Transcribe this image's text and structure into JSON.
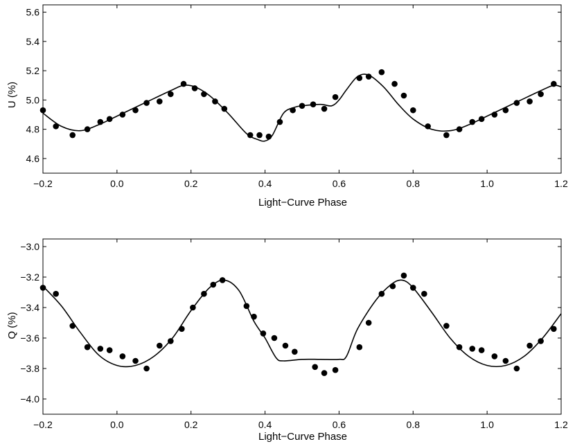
{
  "chart_data": [
    {
      "type": "scatter",
      "panel": "top",
      "xlabel": "Light−Curve Phase",
      "ylabel": "U (%)",
      "xlim": [
        -0.2,
        1.2
      ],
      "ylim": [
        4.5,
        5.65
      ],
      "grid": false,
      "xticks": [
        -0.2,
        0.0,
        0.2,
        0.4,
        0.6,
        0.8,
        1.0,
        1.2
      ],
      "xtick_labels": [
        "−0.2",
        "0.0",
        "0.2",
        "0.4",
        "0.6",
        "0.8",
        "1.0",
        "1.2"
      ],
      "yticks": [
        4.6,
        4.8,
        5.0,
        5.2,
        5.4,
        5.6
      ],
      "ytick_labels": [
        "4.6",
        "4.8",
        "5.0",
        "5.2",
        "5.4",
        "5.6"
      ],
      "series": [
        {
          "kind": "points",
          "x": [
            -0.2,
            -0.165,
            -0.12,
            -0.08,
            -0.045,
            -0.02,
            0.015,
            0.05,
            0.08,
            0.115,
            0.145,
            0.18,
            0.21,
            0.235,
            0.265,
            0.29,
            0.36,
            0.385,
            0.41,
            0.44,
            0.475,
            0.5,
            0.53,
            0.56,
            0.59,
            0.655,
            0.68,
            0.715,
            0.75,
            0.775,
            0.8,
            0.84,
            0.89,
            0.925,
            0.96,
            0.985,
            1.02,
            1.05,
            1.08,
            1.115,
            1.145,
            1.18
          ],
          "y": [
            4.93,
            4.82,
            4.76,
            4.8,
            4.85,
            4.87,
            4.9,
            4.93,
            4.98,
            4.99,
            5.04,
            5.11,
            5.08,
            5.04,
            4.99,
            4.94,
            4.76,
            4.76,
            4.75,
            4.85,
            4.93,
            4.96,
            4.97,
            4.94,
            5.02,
            5.15,
            5.16,
            5.19,
            5.11,
            5.03,
            4.93,
            4.82,
            4.76,
            4.8,
            4.85,
            4.87,
            4.9,
            4.93,
            4.98,
            4.99,
            5.04,
            5.11
          ]
        },
        {
          "kind": "line",
          "x": [
            -0.2,
            -0.15,
            -0.1,
            -0.05,
            0.0,
            0.05,
            0.1,
            0.15,
            0.18,
            0.21,
            0.25,
            0.3,
            0.35,
            0.38,
            0.4,
            0.42,
            0.45,
            0.48,
            0.5,
            0.55,
            0.58,
            0.6,
            0.62,
            0.65,
            0.68,
            0.72,
            0.76,
            0.8,
            0.85,
            0.9,
            0.95,
            1.0,
            1.05,
            1.1,
            1.15,
            1.18,
            1.2
          ],
          "y": [
            4.91,
            4.82,
            4.79,
            4.83,
            4.89,
            4.95,
            5.01,
            5.07,
            5.1,
            5.09,
            5.03,
            4.91,
            4.77,
            4.73,
            4.72,
            4.76,
            4.91,
            4.95,
            4.96,
            4.97,
            4.96,
            5.0,
            5.07,
            5.16,
            5.17,
            5.09,
            4.97,
            4.87,
            4.8,
            4.79,
            4.83,
            4.89,
            4.95,
            5.01,
            5.07,
            5.1,
            5.09
          ]
        }
      ]
    },
    {
      "type": "scatter",
      "panel": "bottom",
      "xlabel": "Light−Curve Phase",
      "ylabel": "Q (%)",
      "xlim": [
        -0.2,
        1.2
      ],
      "ylim": [
        -4.1,
        -2.95
      ],
      "grid": false,
      "xticks": [
        -0.2,
        0.0,
        0.2,
        0.4,
        0.6,
        0.8,
        1.0,
        1.2
      ],
      "xtick_labels": [
        "−0.2",
        "0.0",
        "0.2",
        "0.4",
        "0.6",
        "0.8",
        "1.0",
        "1.2"
      ],
      "yticks": [
        -4.0,
        -3.8,
        -3.6,
        -3.4,
        -3.2,
        -3.0
      ],
      "ytick_labels": [
        "−4.0",
        "−3.8",
        "−3.6",
        "−3.4",
        "−3.2",
        "−3.0"
      ],
      "series": [
        {
          "kind": "points",
          "x": [
            -0.2,
            -0.165,
            -0.12,
            -0.08,
            -0.045,
            -0.02,
            0.015,
            0.05,
            0.08,
            0.115,
            0.145,
            0.175,
            0.205,
            0.235,
            0.26,
            0.285,
            0.35,
            0.37,
            0.395,
            0.425,
            0.455,
            0.48,
            0.535,
            0.56,
            0.59,
            0.655,
            0.68,
            0.715,
            0.745,
            0.775,
            0.8,
            0.83,
            0.89,
            0.925,
            0.96,
            0.985,
            1.02,
            1.05,
            1.08,
            1.115,
            1.145,
            1.18
          ],
          "y": [
            -3.27,
            -3.31,
            -3.52,
            -3.66,
            -3.67,
            -3.68,
            -3.72,
            -3.75,
            -3.8,
            -3.65,
            -3.62,
            -3.54,
            -3.4,
            -3.31,
            -3.25,
            -3.22,
            -3.39,
            -3.46,
            -3.57,
            -3.6,
            -3.65,
            -3.69,
            -3.79,
            -3.83,
            -3.81,
            -3.66,
            -3.5,
            -3.31,
            -3.26,
            -3.19,
            -3.27,
            -3.31,
            -3.52,
            -3.66,
            -3.67,
            -3.68,
            -3.72,
            -3.75,
            -3.8,
            -3.65,
            -3.62,
            -3.54
          ]
        },
        {
          "kind": "line",
          "x": [
            -0.2,
            -0.15,
            -0.1,
            -0.05,
            0.0,
            0.05,
            0.1,
            0.15,
            0.2,
            0.25,
            0.29,
            0.33,
            0.37,
            0.4,
            0.43,
            0.45,
            0.5,
            0.55,
            0.6,
            0.62,
            0.65,
            0.7,
            0.74,
            0.77,
            0.8,
            0.85,
            0.9,
            0.95,
            1.0,
            1.05,
            1.1,
            1.15,
            1.2
          ],
          "y": [
            -3.26,
            -3.39,
            -3.56,
            -3.71,
            -3.78,
            -3.78,
            -3.72,
            -3.6,
            -3.42,
            -3.27,
            -3.22,
            -3.29,
            -3.49,
            -3.6,
            -3.73,
            -3.75,
            -3.74,
            -3.74,
            -3.74,
            -3.72,
            -3.54,
            -3.35,
            -3.25,
            -3.22,
            -3.27,
            -3.43,
            -3.6,
            -3.72,
            -3.78,
            -3.78,
            -3.72,
            -3.6,
            -3.44
          ]
        }
      ]
    }
  ]
}
